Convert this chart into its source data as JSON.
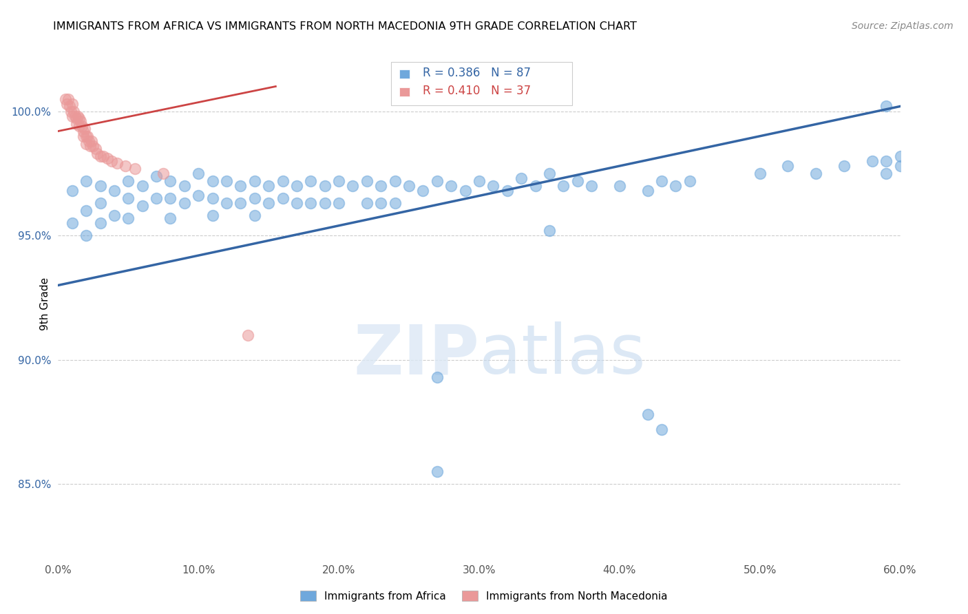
{
  "title": "IMMIGRANTS FROM AFRICA VS IMMIGRANTS FROM NORTH MACEDONIA 9TH GRADE CORRELATION CHART",
  "source": "Source: ZipAtlas.com",
  "xlabel_ticks": [
    "0.0%",
    "10.0%",
    "20.0%",
    "30.0%",
    "40.0%",
    "50.0%",
    "60.0%"
  ],
  "xlabel_vals": [
    0.0,
    0.1,
    0.2,
    0.3,
    0.4,
    0.5,
    0.6
  ],
  "ylabel_ticks": [
    "85.0%",
    "90.0%",
    "95.0%",
    "100.0%"
  ],
  "ylabel_vals": [
    0.85,
    0.9,
    0.95,
    1.0
  ],
  "xlim": [
    0.0,
    0.6
  ],
  "ylim": [
    0.82,
    1.025
  ],
  "ylabel": "9th Grade",
  "legend_blue_r": "R = 0.386",
  "legend_blue_n": "N = 87",
  "legend_pink_r": "R = 0.410",
  "legend_pink_n": "N = 37",
  "blue_color": "#6fa8dc",
  "pink_color": "#ea9999",
  "blue_line_color": "#3465a4",
  "pink_line_color": "#cc4444",
  "blue_x": [
    0.01,
    0.01,
    0.02,
    0.02,
    0.02,
    0.03,
    0.03,
    0.03,
    0.04,
    0.04,
    0.05,
    0.05,
    0.05,
    0.06,
    0.06,
    0.07,
    0.07,
    0.08,
    0.08,
    0.08,
    0.09,
    0.09,
    0.1,
    0.1,
    0.11,
    0.11,
    0.11,
    0.12,
    0.12,
    0.13,
    0.13,
    0.14,
    0.14,
    0.14,
    0.15,
    0.15,
    0.16,
    0.16,
    0.17,
    0.17,
    0.18,
    0.18,
    0.19,
    0.19,
    0.2,
    0.2,
    0.21,
    0.22,
    0.22,
    0.23,
    0.23,
    0.24,
    0.24,
    0.25,
    0.26,
    0.27,
    0.28,
    0.29,
    0.3,
    0.31,
    0.32,
    0.33,
    0.34,
    0.35,
    0.36,
    0.37,
    0.38,
    0.4,
    0.42,
    0.43,
    0.44,
    0.45,
    0.5,
    0.52,
    0.54,
    0.56,
    0.58,
    0.59,
    0.59,
    0.6,
    0.6,
    0.27,
    0.35,
    0.42,
    0.27,
    0.43,
    0.59
  ],
  "blue_y": [
    0.968,
    0.955,
    0.972,
    0.96,
    0.95,
    0.97,
    0.963,
    0.955,
    0.968,
    0.958,
    0.972,
    0.965,
    0.957,
    0.97,
    0.962,
    0.974,
    0.965,
    0.972,
    0.965,
    0.957,
    0.97,
    0.963,
    0.975,
    0.966,
    0.972,
    0.965,
    0.958,
    0.972,
    0.963,
    0.97,
    0.963,
    0.972,
    0.965,
    0.958,
    0.97,
    0.963,
    0.972,
    0.965,
    0.97,
    0.963,
    0.972,
    0.963,
    0.97,
    0.963,
    0.972,
    0.963,
    0.97,
    0.972,
    0.963,
    0.97,
    0.963,
    0.972,
    0.963,
    0.97,
    0.968,
    0.972,
    0.97,
    0.968,
    0.972,
    0.97,
    0.968,
    0.973,
    0.97,
    0.975,
    0.97,
    0.972,
    0.97,
    0.97,
    0.968,
    0.972,
    0.97,
    0.972,
    0.975,
    0.978,
    0.975,
    0.978,
    0.98,
    0.98,
    0.975,
    0.982,
    0.978,
    0.893,
    0.952,
    0.878,
    0.855,
    0.872,
    1.002
  ],
  "pink_x": [
    0.005,
    0.006,
    0.007,
    0.008,
    0.009,
    0.01,
    0.01,
    0.011,
    0.012,
    0.013,
    0.013,
    0.014,
    0.015,
    0.015,
    0.016,
    0.017,
    0.018,
    0.018,
    0.019,
    0.02,
    0.02,
    0.021,
    0.022,
    0.023,
    0.024,
    0.025,
    0.027,
    0.028,
    0.03,
    0.032,
    0.035,
    0.038,
    0.042,
    0.048,
    0.055,
    0.075,
    0.135
  ],
  "pink_y": [
    1.005,
    1.003,
    1.005,
    1.002,
    1.0,
    1.003,
    0.998,
    1.0,
    0.998,
    0.997,
    0.995,
    0.998,
    0.997,
    0.994,
    0.996,
    0.994,
    0.992,
    0.99,
    0.993,
    0.99,
    0.987,
    0.99,
    0.988,
    0.986,
    0.988,
    0.986,
    0.985,
    0.983,
    0.982,
    0.982,
    0.981,
    0.98,
    0.979,
    0.978,
    0.977,
    0.975,
    0.91
  ],
  "blue_line_x": [
    0.0,
    0.6
  ],
  "blue_line_y": [
    0.93,
    1.002
  ],
  "pink_line_x": [
    0.0,
    0.155
  ],
  "pink_line_y": [
    0.992,
    1.01
  ]
}
